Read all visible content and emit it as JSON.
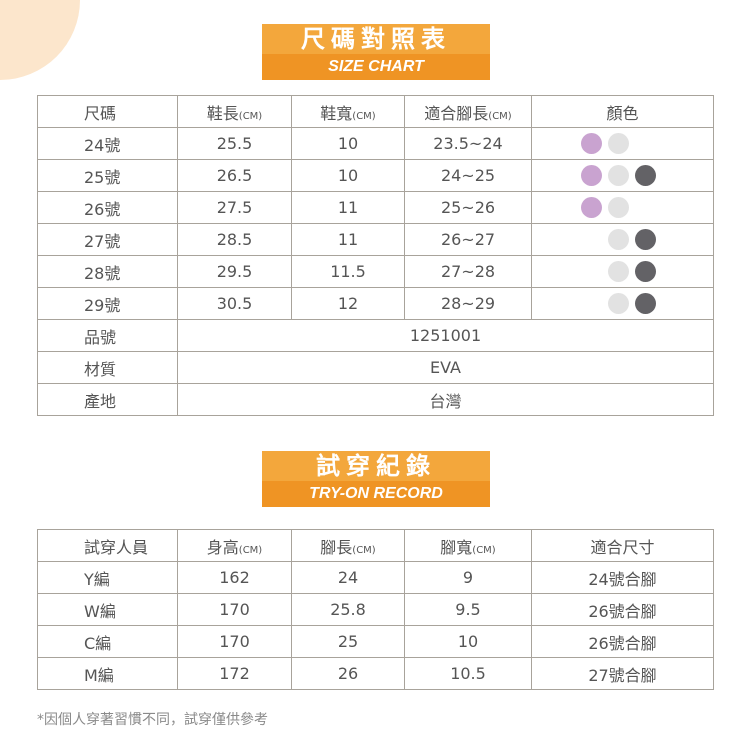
{
  "colors": {
    "purple": "#c9a3d0",
    "light": "#e2e2e2",
    "dark": "#636266",
    "accent": "#f3a73c"
  },
  "size_chart": {
    "title": "尺碼對照表",
    "subtitle": "SIZE CHART",
    "headers": [
      {
        "t": "尺碼",
        "u": ""
      },
      {
        "t": "鞋長",
        "u": "(CM)"
      },
      {
        "t": "鞋寬",
        "u": "(CM)"
      },
      {
        "t": "適合腳長",
        "u": "(CM)"
      },
      {
        "t": "顏色",
        "u": ""
      }
    ],
    "rows": [
      {
        "size": "24號",
        "length": "25.5",
        "width": "10",
        "foot": "23.5~24",
        "colors": [
          "purple",
          "light",
          ""
        ]
      },
      {
        "size": "25號",
        "length": "26.5",
        "width": "10",
        "foot": "24~25",
        "colors": [
          "purple",
          "light",
          "dark"
        ]
      },
      {
        "size": "26號",
        "length": "27.5",
        "width": "11",
        "foot": "25~26",
        "colors": [
          "purple",
          "light",
          ""
        ]
      },
      {
        "size": "27號",
        "length": "28.5",
        "width": "11",
        "foot": "26~27",
        "colors": [
          "",
          "light",
          "dark"
        ]
      },
      {
        "size": "28號",
        "length": "29.5",
        "width": "11.5",
        "foot": "27~28",
        "colors": [
          "",
          "light",
          "dark"
        ]
      },
      {
        "size": "29號",
        "length": "30.5",
        "width": "12",
        "foot": "28~29",
        "colors": [
          "",
          "light",
          "dark"
        ]
      }
    ],
    "info": [
      {
        "label": "品號",
        "value": "1251001"
      },
      {
        "label": "材質",
        "value": "EVA"
      },
      {
        "label": "產地",
        "value": "台灣"
      }
    ]
  },
  "tryon": {
    "title": "試穿紀錄",
    "subtitle": "TRY-ON RECORD",
    "headers": [
      {
        "t": "試穿人員",
        "u": ""
      },
      {
        "t": "身高",
        "u": "(CM)"
      },
      {
        "t": "腳長",
        "u": "(CM)"
      },
      {
        "t": "腳寬",
        "u": "(CM)"
      },
      {
        "t": "適合尺寸",
        "u": ""
      }
    ],
    "rows": [
      [
        "Y編",
        "162",
        "24",
        "9",
        "24號合腳"
      ],
      [
        "W編",
        "170",
        "25.8",
        "9.5",
        "26號合腳"
      ],
      [
        "C編",
        "170",
        "25",
        "10",
        "26號合腳"
      ],
      [
        "M編",
        "172",
        "26",
        "10.5",
        "27號合腳"
      ]
    ]
  },
  "note": "*因個人穿著習慣不同，試穿僅供參考"
}
